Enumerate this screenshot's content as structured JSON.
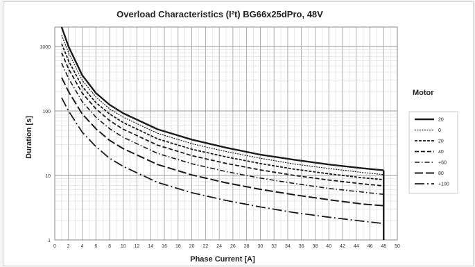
{
  "chart_data": {
    "type": "line",
    "title": "Overload Characteristics (I²t) BG66x25dPro, 48V",
    "xlabel": "Phase Current [A]",
    "ylabel": "Duration [s]",
    "x_scale": "linear",
    "y_scale": "log",
    "xlim": [
      0,
      50
    ],
    "ylim": [
      1,
      2000
    ],
    "x_ticks": [
      "0",
      "2",
      "4",
      "6",
      "8",
      "10",
      "12",
      "14",
      "16",
      "18",
      "20",
      "22",
      "24",
      "26",
      "28",
      "30",
      "32",
      "34",
      "36",
      "38",
      "40",
      "42",
      "44",
      "46",
      "48",
      "50"
    ],
    "y_ticks": [
      {
        "value": 1,
        "label": "1"
      },
      {
        "value": 10,
        "label": "10"
      },
      {
        "value": 100,
        "label": "100"
      },
      {
        "value": 1000,
        "label": "1000"
      }
    ],
    "grid": true,
    "legend_title": "Motor",
    "legend_position": "right",
    "series": [
      {
        "name": "20",
        "values": [
          [
            1,
            2000
          ],
          [
            2,
            1000
          ],
          [
            4,
            360
          ],
          [
            6,
            190
          ],
          [
            8,
            125
          ],
          [
            10,
            92
          ],
          [
            15,
            52
          ],
          [
            20,
            36
          ],
          [
            25,
            27
          ],
          [
            30,
            21
          ],
          [
            35,
            17.5
          ],
          [
            40,
            14.8
          ],
          [
            45,
            12.9
          ],
          [
            48,
            12
          ]
        ]
      },
      {
        "name": "0",
        "values": [
          [
            1,
            1500
          ],
          [
            2,
            800
          ],
          [
            4,
            300
          ],
          [
            6,
            165
          ],
          [
            8,
            108
          ],
          [
            10,
            80
          ],
          [
            15,
            45
          ],
          [
            20,
            31
          ],
          [
            25,
            23.5
          ],
          [
            30,
            18.5
          ],
          [
            35,
            15
          ],
          [
            40,
            12.8
          ],
          [
            45,
            11.1
          ],
          [
            48,
            10.3
          ]
        ]
      },
      {
        "name": "20",
        "values": [
          [
            1,
            1100
          ],
          [
            2,
            600
          ],
          [
            4,
            240
          ],
          [
            6,
            135
          ],
          [
            8,
            90
          ],
          [
            10,
            66
          ],
          [
            15,
            37
          ],
          [
            20,
            25.5
          ],
          [
            25,
            19.4
          ],
          [
            30,
            15.3
          ],
          [
            35,
            12.5
          ],
          [
            40,
            10.6
          ],
          [
            45,
            9.2
          ],
          [
            48,
            8.6
          ]
        ]
      },
      {
        "name": "40",
        "values": [
          [
            1,
            800
          ],
          [
            2,
            450
          ],
          [
            4,
            190
          ],
          [
            6,
            108
          ],
          [
            8,
            71
          ],
          [
            10,
            52
          ],
          [
            15,
            29.5
          ],
          [
            20,
            20.3
          ],
          [
            25,
            15.4
          ],
          [
            30,
            12.2
          ],
          [
            35,
            10
          ],
          [
            40,
            8.5
          ],
          [
            45,
            7.4
          ],
          [
            48,
            6.9
          ]
        ]
      },
      {
        "name": "+60",
        "values": [
          [
            1,
            550
          ],
          [
            2,
            320
          ],
          [
            4,
            140
          ],
          [
            6,
            80
          ],
          [
            8,
            53
          ],
          [
            10,
            39
          ],
          [
            15,
            22
          ],
          [
            20,
            15.2
          ],
          [
            25,
            11.5
          ],
          [
            30,
            9.1
          ],
          [
            35,
            7.5
          ],
          [
            40,
            6.3
          ],
          [
            45,
            5.5
          ],
          [
            48,
            5.1
          ]
        ]
      },
      {
        "name": "80",
        "values": [
          [
            1,
            330
          ],
          [
            2,
            200
          ],
          [
            4,
            90
          ],
          [
            6,
            53
          ],
          [
            8,
            35
          ],
          [
            10,
            26
          ],
          [
            15,
            14.8
          ],
          [
            20,
            10.2
          ],
          [
            25,
            7.7
          ],
          [
            30,
            6.1
          ],
          [
            35,
            5
          ],
          [
            40,
            4.2
          ],
          [
            45,
            3.6
          ],
          [
            48,
            3.4
          ]
        ]
      },
      {
        "name": "+100",
        "values": [
          [
            1,
            160
          ],
          [
            2,
            100
          ],
          [
            4,
            47
          ],
          [
            6,
            28
          ],
          [
            8,
            18.5
          ],
          [
            10,
            13.8
          ],
          [
            15,
            7.8
          ],
          [
            20,
            5.4
          ],
          [
            25,
            4.1
          ],
          [
            30,
            3.25
          ],
          [
            35,
            2.65
          ],
          [
            40,
            2.25
          ],
          [
            45,
            1.95
          ],
          [
            48,
            1.8
          ]
        ]
      }
    ],
    "cutoff_x": 48
  },
  "colors": {
    "grid_major": "#9a9a9a",
    "grid_minor": "#d2d2d2",
    "line": "#1a1a1a",
    "frame": "#cfcfcf"
  }
}
